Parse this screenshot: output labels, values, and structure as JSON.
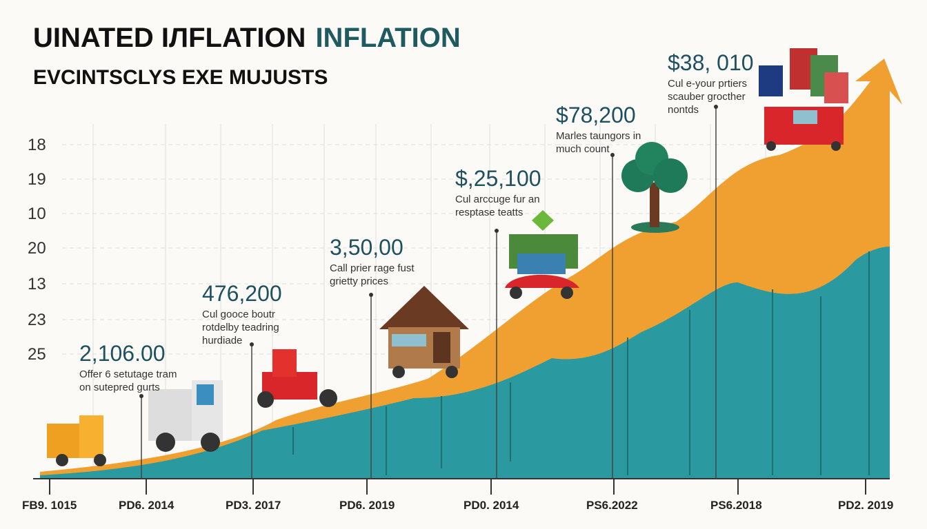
{
  "header": {
    "title_dark": "UINATED IЛFLATION",
    "title_accent": "INFLATION",
    "subtitle": "EVCINTSCLYS EXE MUJUSTS"
  },
  "y_labels": [
    "18",
    "19",
    "10",
    "20",
    "13",
    "23",
    "25"
  ],
  "x_labels": [
    "FB9. 1015",
    "PD6. 2014",
    "PD3. 2017",
    "PD6. 2019",
    "PD0. 2014",
    "PS6.2022",
    "PS6.2018",
    "PD2. 2019"
  ],
  "annotations": [
    {
      "value": "2,106.00",
      "caption": [
        "Offer 6 setutage tram",
        "on sutepred gurts"
      ]
    },
    {
      "value": "476,200",
      "caption": [
        "Cul gooce boutr",
        "rotdelby teadring",
        "hurdiade"
      ]
    },
    {
      "value": "3,50,00",
      "caption": [
        "Call prier rage fust",
        "grietty prices"
      ]
    },
    {
      "value": "$,25,100",
      "caption": [
        "Cul arccuge fur an",
        "resptase teatts"
      ]
    },
    {
      "value": "$78,200",
      "caption": [
        "Marles taungors in",
        "much count"
      ]
    },
    {
      "value": "$38, 010",
      "caption": [
        "Cul e-your prtiers",
        "scauber grocther",
        "nontds"
      ]
    }
  ]
}
